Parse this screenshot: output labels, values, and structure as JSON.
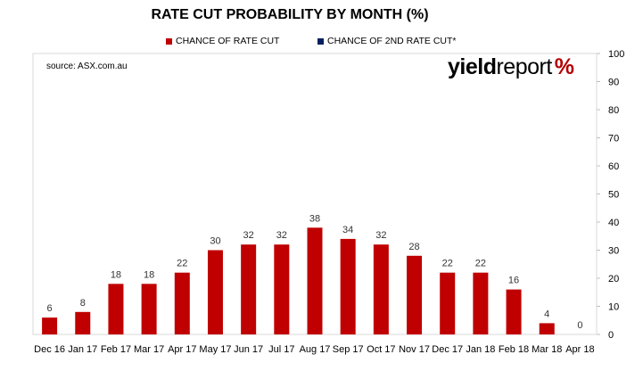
{
  "chart_data": {
    "type": "bar",
    "title": "RATE CUT PROBABILITY BY MONTH  (%)",
    "source": "source: ASX.com.au",
    "logo": {
      "part1": "yield",
      "part2": "report",
      "symbol": "%"
    },
    "legend": [
      {
        "name": "CHANCE OF RATE CUT",
        "color": "#c00000"
      },
      {
        "name": "CHANCE OF 2ND RATE CUT*",
        "color": "#002060"
      }
    ],
    "categories": [
      "Dec 16",
      "Jan 17",
      "Feb 17",
      "Mar 17",
      "Apr 17",
      "May 17",
      "Jun 17",
      "Jul 17",
      "Aug 17",
      "Sep 17",
      "Oct 17",
      "Nov 17",
      "Dec 17",
      "Jan 18",
      "Feb 18",
      "Mar 18",
      "Apr 18"
    ],
    "series": [
      {
        "name": "CHANCE OF RATE CUT",
        "color": "#c00000",
        "values": [
          6,
          8,
          18,
          18,
          22,
          30,
          32,
          32,
          38,
          34,
          32,
          28,
          22,
          22,
          16,
          4,
          0
        ]
      }
    ],
    "ylim": [
      0,
      100
    ],
    "yticks": [
      0,
      10,
      20,
      30,
      40,
      50,
      60,
      70,
      80,
      90,
      100
    ],
    "y_axis_side": "right",
    "grid": false
  }
}
